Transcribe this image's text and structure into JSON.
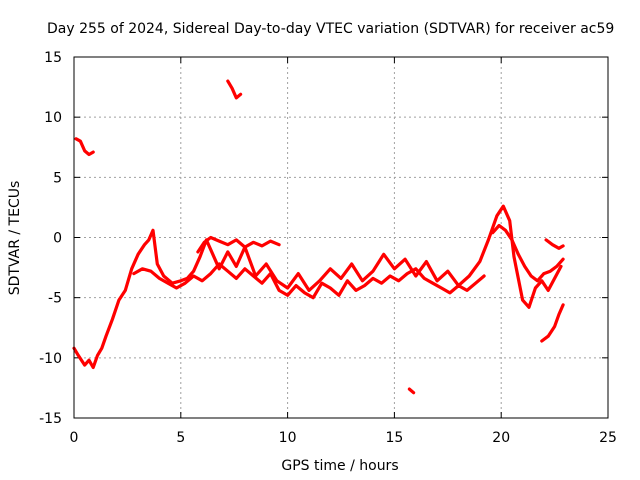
{
  "chart_data": {
    "type": "line",
    "title": "Day 255 of 2024, Sidereal Day-to-day VTEC variation (SDTVAR) for receiver ac59",
    "xlabel": "GPS time / hours",
    "ylabel": "SDTVAR / TECUs",
    "xlim": [
      0,
      25
    ],
    "ylim": [
      -15,
      15
    ],
    "xticks": [
      0,
      5,
      10,
      15,
      20,
      25
    ],
    "xtick_labels": [
      "0",
      "5",
      "10",
      "15",
      "20",
      "25"
    ],
    "yticks": [
      -15,
      -10,
      -5,
      0,
      5,
      10,
      15
    ],
    "ytick_labels": [
      "-15",
      "-10",
      "-5",
      "0",
      "5",
      "10",
      "15"
    ],
    "grid": true,
    "color": "#ff0000",
    "series": [
      {
        "name": "main-trace",
        "x": [
          0.0,
          0.2,
          0.5,
          0.7,
          0.9,
          1.1,
          1.3,
          1.5,
          1.8,
          2.1,
          2.4,
          2.7,
          3.0,
          3.3,
          3.5,
          3.7,
          3.9,
          4.2,
          4.6,
          5.0,
          5.3,
          5.6,
          5.9,
          6.2,
          6.5,
          6.8,
          7.2,
          7.6,
          8.0,
          8.5,
          9.0,
          9.5,
          10.0,
          10.5,
          11.0,
          11.5,
          12.0,
          12.5,
          13.0,
          13.5,
          14.0,
          14.5,
          15.0,
          15.5,
          16.0,
          16.5,
          17.0,
          17.5,
          18.0,
          18.5,
          19.0,
          19.4,
          19.8,
          20.1,
          20.4,
          20.6,
          20.8,
          21.0,
          21.3,
          21.6,
          21.9,
          22.2,
          22.5,
          22.8
        ],
        "y": [
          -9.2,
          -9.8,
          -10.6,
          -10.2,
          -10.8,
          -9.8,
          -9.2,
          -8.2,
          -6.8,
          -5.2,
          -4.4,
          -2.6,
          -1.4,
          -0.6,
          -0.2,
          0.6,
          -2.2,
          -3.2,
          -3.8,
          -3.6,
          -3.4,
          -2.8,
          -1.6,
          -0.2,
          -1.4,
          -2.6,
          -1.2,
          -2.4,
          -0.8,
          -3.2,
          -2.2,
          -3.6,
          -4.2,
          -3.0,
          -4.4,
          -3.6,
          -2.6,
          -3.4,
          -2.2,
          -3.6,
          -2.8,
          -1.4,
          -2.6,
          -1.8,
          -3.2,
          -2.0,
          -3.6,
          -2.8,
          -4.0,
          -3.2,
          -2.0,
          -0.2,
          1.8,
          2.6,
          1.4,
          -1.6,
          -3.4,
          -5.2,
          -5.8,
          -4.2,
          -3.6,
          -4.4,
          -3.4,
          -2.4
        ]
      },
      {
        "name": "lower-band",
        "x": [
          2.8,
          3.2,
          3.6,
          4.0,
          4.4,
          4.8,
          5.2,
          5.6,
          6.0,
          6.4,
          6.8,
          7.2,
          7.6,
          8.0,
          8.4,
          8.8,
          9.2,
          9.6,
          10.0,
          10.4,
          10.8,
          11.2,
          11.6,
          12.0,
          12.4,
          12.8,
          13.2,
          13.6,
          14.0,
          14.4,
          14.8,
          15.2,
          15.6,
          16.0,
          16.4,
          16.8,
          17.2,
          17.6,
          18.0,
          18.4,
          18.8,
          19.2
        ],
        "y": [
          -3.0,
          -2.6,
          -2.8,
          -3.4,
          -3.8,
          -4.2,
          -3.8,
          -3.2,
          -3.6,
          -3.0,
          -2.2,
          -2.8,
          -3.4,
          -2.6,
          -3.2,
          -3.8,
          -3.0,
          -4.4,
          -4.8,
          -4.0,
          -4.6,
          -5.0,
          -3.8,
          -4.2,
          -4.8,
          -3.6,
          -4.4,
          -4.0,
          -3.4,
          -3.8,
          -3.2,
          -3.6,
          -3.0,
          -2.6,
          -3.4,
          -3.8,
          -4.2,
          -4.6,
          -4.0,
          -4.4,
          -3.8,
          -3.2
        ]
      },
      {
        "name": "upper-band",
        "x": [
          5.8,
          6.1,
          6.4,
          6.8,
          7.2,
          7.6,
          8.0,
          8.4,
          8.8,
          9.2,
          9.6
        ],
        "y": [
          -1.2,
          -0.4,
          0.0,
          -0.3,
          -0.6,
          -0.2,
          -0.8,
          -0.4,
          -0.7,
          -0.3,
          -0.6
        ]
      },
      {
        "name": "trace-after-20h",
        "x": [
          19.6,
          19.9,
          20.2,
          20.5,
          20.8,
          21.1,
          21.4,
          21.7,
          22.0,
          22.3,
          22.6,
          22.9
        ],
        "y": [
          0.4,
          1.0,
          0.6,
          -0.2,
          -1.4,
          -2.4,
          -3.2,
          -3.6,
          -3.0,
          -2.8,
          -2.4,
          -1.8
        ]
      },
      {
        "name": "bottom-tail",
        "x": [
          21.9,
          22.2,
          22.5,
          22.7,
          22.9
        ],
        "y": [
          -8.6,
          -8.2,
          -7.4,
          -6.4,
          -5.6
        ]
      },
      {
        "name": "right-end",
        "x": [
          22.1,
          22.4,
          22.7,
          22.9
        ],
        "y": [
          -0.2,
          -0.6,
          -0.9,
          -0.7
        ]
      },
      {
        "name": "early-high",
        "x": [
          0.1,
          0.3,
          0.5,
          0.7,
          0.9
        ],
        "y": [
          8.2,
          8.0,
          7.2,
          6.9,
          7.1
        ]
      },
      {
        "name": "outlier-high",
        "x": [
          7.2,
          7.4,
          7.6,
          7.8
        ],
        "y": [
          13.0,
          12.4,
          11.6,
          11.9
        ]
      },
      {
        "name": "outlier-low",
        "x": [
          15.7,
          15.9
        ],
        "y": [
          -12.6,
          -12.9
        ]
      }
    ]
  }
}
